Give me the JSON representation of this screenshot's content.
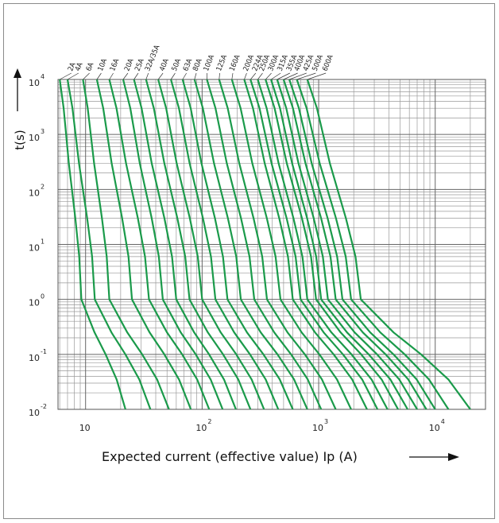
{
  "chart_data": {
    "type": "line",
    "title": "",
    "xlabel": "Expected current (effective value) Ip (A)",
    "ylabel": "t(s)",
    "x_scale": "log",
    "y_scale": "log",
    "xlim": [
      5.8,
      27000
    ],
    "ylim": [
      0.01,
      10000
    ],
    "x_ticks": [
      {
        "base": "10",
        "exp": "",
        "value": 10
      },
      {
        "base": "10",
        "exp": "2",
        "value": 100
      },
      {
        "base": "10",
        "exp": "3",
        "value": 1000
      },
      {
        "base": "10",
        "exp": "4",
        "value": 10000
      }
    ],
    "y_ticks": [
      {
        "base": "10",
        "exp": "4",
        "value": 10000
      },
      {
        "base": "10",
        "exp": "3",
        "value": 1000
      },
      {
        "base": "10",
        "exp": "2",
        "value": 100
      },
      {
        "base": "10",
        "exp": "1",
        "value": 10
      },
      {
        "base": "10",
        "exp": "0",
        "value": 1
      },
      {
        "base": "10",
        "exp": "-1",
        "value": 0.1
      },
      {
        "base": "10",
        "exp": "-2",
        "value": 0.01
      }
    ],
    "grid": true,
    "legend": "top",
    "line_color": "#1a9a4a",
    "series": [
      {
        "name": "2A",
        "label_x": 7.2,
        "x_at_t10000": 6.0,
        "x_at_t1": 9.2,
        "x_at_t0_01": 22
      },
      {
        "name": "4A",
        "label_x": 8.3,
        "x_at_t10000": 7.0,
        "x_at_t1": 12,
        "x_at_t0_01": 36
      },
      {
        "name": "6A",
        "label_x": 10.3,
        "x_at_t10000": 9.5,
        "x_at_t1": 16,
        "x_at_t0_01": 52
      },
      {
        "name": "10A",
        "label_x": 13,
        "x_at_t10000": 12.5,
        "x_at_t1": 25,
        "x_at_t0_01": 80
      },
      {
        "name": "16A",
        "label_x": 16.5,
        "x_at_t10000": 16,
        "x_at_t1": 35,
        "x_at_t0_01": 115
      },
      {
        "name": "20A",
        "label_x": 22,
        "x_at_t10000": 21,
        "x_at_t1": 46,
        "x_at_t0_01": 150
      },
      {
        "name": "25A",
        "label_x": 27,
        "x_at_t10000": 26,
        "x_at_t1": 60,
        "x_at_t0_01": 195
      },
      {
        "name": "32A/35A",
        "label_x": 33,
        "x_at_t10000": 33,
        "x_at_t1": 78,
        "x_at_t0_01": 260
      },
      {
        "name": "40A",
        "label_x": 44,
        "x_at_t10000": 42,
        "x_at_t1": 100,
        "x_at_t0_01": 340
      },
      {
        "name": "50A",
        "label_x": 56,
        "x_at_t10000": 54,
        "x_at_t1": 130,
        "x_at_t0_01": 450
      },
      {
        "name": "63A",
        "label_x": 70,
        "x_at_t10000": 68,
        "x_at_t1": 165,
        "x_at_t0_01": 600
      },
      {
        "name": "80A",
        "label_x": 85,
        "x_at_t10000": 86,
        "x_at_t1": 215,
        "x_at_t0_01": 800
      },
      {
        "name": "100A",
        "label_x": 105,
        "x_at_t10000": 110,
        "x_at_t1": 280,
        "x_at_t0_01": 1050
      },
      {
        "name": "125A",
        "label_x": 135,
        "x_at_t10000": 140,
        "x_at_t1": 360,
        "x_at_t0_01": 1400
      },
      {
        "name": "160A",
        "label_x": 175,
        "x_at_t10000": 180,
        "x_at_t1": 470,
        "x_at_t0_01": 1900
      },
      {
        "name": "200A",
        "label_x": 230,
        "x_at_t10000": 230,
        "x_at_t1": 600,
        "x_at_t0_01": 2600
      },
      {
        "name": "224A",
        "label_x": 275,
        "x_at_t10000": 260,
        "x_at_t1": 700,
        "x_at_t0_01": 3200
      },
      {
        "name": "250A",
        "label_x": 315,
        "x_at_t10000": 300,
        "x_at_t1": 800,
        "x_at_t0_01": 3900
      },
      {
        "name": "300A",
        "label_x": 375,
        "x_at_t10000": 350,
        "x_at_t1": 950,
        "x_at_t0_01": 4800
      },
      {
        "name": "315A",
        "label_x": 450,
        "x_at_t10000": 390,
        "x_at_t1": 1050,
        "x_at_t0_01": 5800
      },
      {
        "name": "355A",
        "label_x": 540,
        "x_at_t10000": 440,
        "x_at_t1": 1200,
        "x_at_t0_01": 7000
      },
      {
        "name": "400A",
        "label_x": 630,
        "x_at_t10000": 500,
        "x_at_t1": 1400,
        "x_at_t0_01": 8400
      },
      {
        "name": "425A",
        "label_x": 750,
        "x_at_t10000": 560,
        "x_at_t1": 1600,
        "x_at_t0_01": 10000
      },
      {
        "name": "500A",
        "label_x": 900,
        "x_at_t10000": 650,
        "x_at_t1": 1900,
        "x_at_t0_01": 13000
      },
      {
        "name": "600A",
        "label_x": 1100,
        "x_at_t10000": 800,
        "x_at_t1": 2300,
        "x_at_t0_01": 20000
      }
    ]
  }
}
